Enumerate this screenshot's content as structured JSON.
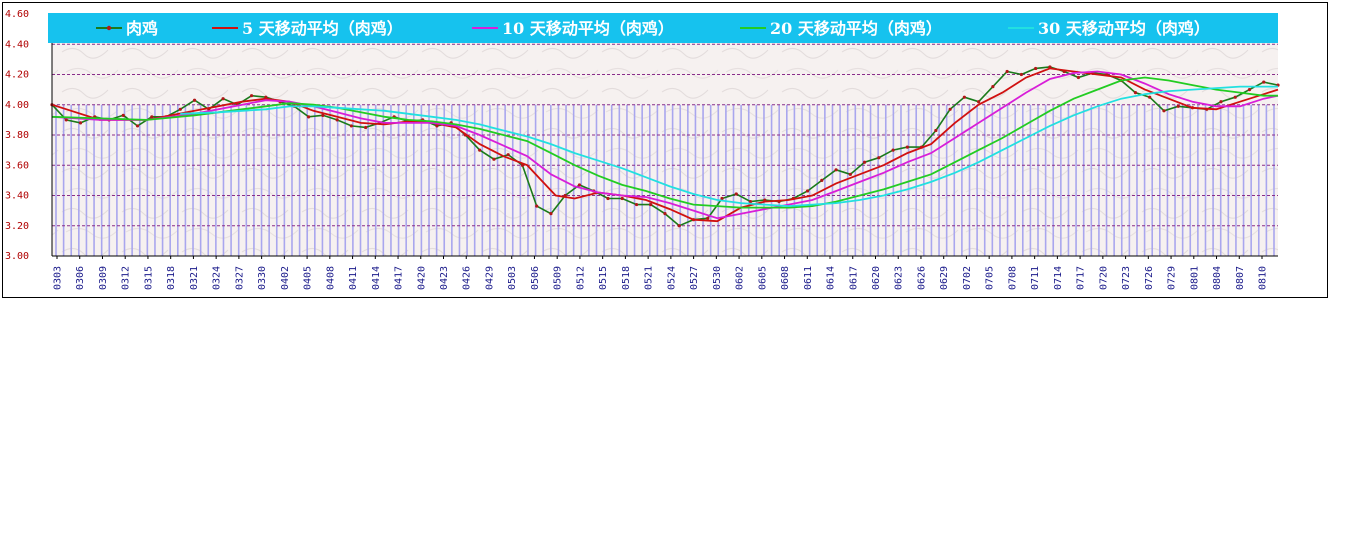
{
  "chart_data": {
    "type": "line",
    "title": "",
    "xlabel": "",
    "ylabel": "",
    "ylim": [
      3.0,
      4.6
    ],
    "y_ticks": [
      "3.00",
      "3.20",
      "3.40",
      "3.60",
      "3.80",
      "4.00",
      "4.20",
      "4.40",
      "4.60"
    ],
    "grid": true,
    "legend_position": "top",
    "x_tick_labels": [
      "0303",
      "0306",
      "0309",
      "0312",
      "0315",
      "0318",
      "0321",
      "0324",
      "0327",
      "0330",
      "0402",
      "0405",
      "0408",
      "0411",
      "0414",
      "0417",
      "0420",
      "0423",
      "0426",
      "0429",
      "0503",
      "0506",
      "0509",
      "0512",
      "0515",
      "0518",
      "0521",
      "0524",
      "0527",
      "0530",
      "0602",
      "0605",
      "0608",
      "0611",
      "0614",
      "0617",
      "0620",
      "0623",
      "0626",
      "0629",
      "0702",
      "0705",
      "0708",
      "0711",
      "0714",
      "0717",
      "0720",
      "0723",
      "0726",
      "0729",
      "0801",
      "0804",
      "0807",
      "0810"
    ],
    "n_days": 161,
    "series": [
      {
        "name": "肉鸡",
        "color": "#1a7a1a",
        "marker": true,
        "points": [
          [
            0,
            4.0
          ],
          [
            3,
            3.9
          ],
          [
            6,
            3.88
          ],
          [
            9,
            3.92
          ],
          [
            12,
            3.9
          ],
          [
            15,
            3.93
          ],
          [
            18,
            3.86
          ],
          [
            21,
            3.92
          ],
          [
            24,
            3.92
          ],
          [
            27,
            3.97
          ],
          [
            30,
            4.03
          ],
          [
            33,
            3.97
          ],
          [
            36,
            4.04
          ],
          [
            39,
            4.0
          ],
          [
            42,
            4.06
          ],
          [
            45,
            4.05
          ],
          [
            48,
            4.02
          ],
          [
            51,
            3.99
          ],
          [
            54,
            3.92
          ],
          [
            57,
            3.93
          ],
          [
            60,
            3.9
          ],
          [
            63,
            3.86
          ],
          [
            66,
            3.85
          ],
          [
            69,
            3.88
          ],
          [
            72,
            3.92
          ],
          [
            75,
            3.89
          ],
          [
            78,
            3.9
          ],
          [
            81,
            3.86
          ],
          [
            84,
            3.88
          ],
          [
            87,
            3.8
          ],
          [
            90,
            3.7
          ],
          [
            93,
            3.64
          ],
          [
            96,
            3.67
          ],
          [
            99,
            3.6
          ],
          [
            102,
            3.33
          ],
          [
            105,
            3.28
          ],
          [
            108,
            3.4
          ],
          [
            111,
            3.47
          ],
          [
            114,
            3.43
          ],
          [
            117,
            3.38
          ],
          [
            120,
            3.38
          ],
          [
            123,
            3.34
          ],
          [
            126,
            3.34
          ],
          [
            129,
            3.28
          ],
          [
            132,
            3.2
          ],
          [
            135,
            3.24
          ],
          [
            138,
            3.25
          ],
          [
            141,
            3.38
          ],
          [
            144,
            3.41
          ],
          [
            147,
            3.36
          ],
          [
            150,
            3.37
          ],
          [
            153,
            3.36
          ],
          [
            156,
            3.38
          ],
          [
            159,
            3.43
          ],
          [
            162,
            3.5
          ],
          [
            165,
            3.57
          ],
          [
            168,
            3.54
          ],
          [
            171,
            3.62
          ],
          [
            174,
            3.65
          ],
          [
            177,
            3.7
          ],
          [
            180,
            3.72
          ],
          [
            183,
            3.72
          ],
          [
            186,
            3.83
          ],
          [
            189,
            3.97
          ],
          [
            192,
            4.05
          ],
          [
            195,
            4.02
          ],
          [
            198,
            4.12
          ],
          [
            201,
            4.22
          ],
          [
            204,
            4.2
          ],
          [
            207,
            4.24
          ],
          [
            210,
            4.25
          ],
          [
            213,
            4.22
          ],
          [
            216,
            4.18
          ],
          [
            219,
            4.21
          ],
          [
            222,
            4.2
          ],
          [
            225,
            4.16
          ],
          [
            228,
            4.08
          ],
          [
            231,
            4.05
          ],
          [
            234,
            3.96
          ],
          [
            237,
            3.99
          ],
          [
            240,
            3.98
          ],
          [
            243,
            3.97
          ],
          [
            246,
            4.02
          ],
          [
            249,
            4.05
          ],
          [
            252,
            4.1
          ],
          [
            255,
            4.15
          ],
          [
            258,
            4.13
          ]
        ]
      },
      {
        "name": "5 天移动平均（肉鸡）",
        "color": "#d01010",
        "marker": false,
        "points": [
          [
            0,
            4.0
          ],
          [
            10,
            3.9
          ],
          [
            20,
            3.9
          ],
          [
            30,
            3.96
          ],
          [
            40,
            4.02
          ],
          [
            45,
            4.04
          ],
          [
            50,
            4.02
          ],
          [
            55,
            3.96
          ],
          [
            60,
            3.92
          ],
          [
            65,
            3.88
          ],
          [
            70,
            3.87
          ],
          [
            75,
            3.89
          ],
          [
            80,
            3.88
          ],
          [
            85,
            3.85
          ],
          [
            90,
            3.74
          ],
          [
            95,
            3.66
          ],
          [
            100,
            3.6
          ],
          [
            103,
            3.5
          ],
          [
            106,
            3.4
          ],
          [
            110,
            3.38
          ],
          [
            115,
            3.42
          ],
          [
            120,
            3.4
          ],
          [
            125,
            3.37
          ],
          [
            130,
            3.31
          ],
          [
            135,
            3.24
          ],
          [
            140,
            3.23
          ],
          [
            145,
            3.32
          ],
          [
            150,
            3.36
          ],
          [
            155,
            3.37
          ],
          [
            160,
            3.4
          ],
          [
            165,
            3.48
          ],
          [
            170,
            3.54
          ],
          [
            175,
            3.6
          ],
          [
            180,
            3.68
          ],
          [
            185,
            3.74
          ],
          [
            190,
            3.88
          ],
          [
            195,
            4.0
          ],
          [
            200,
            4.08
          ],
          [
            205,
            4.18
          ],
          [
            210,
            4.24
          ],
          [
            215,
            4.22
          ],
          [
            220,
            4.2
          ],
          [
            225,
            4.18
          ],
          [
            230,
            4.1
          ],
          [
            235,
            4.04
          ],
          [
            240,
            3.98
          ],
          [
            245,
            3.97
          ],
          [
            250,
            4.02
          ],
          [
            255,
            4.07
          ],
          [
            258,
            4.1
          ]
        ]
      },
      {
        "name": "10 天移动平均（肉鸡）",
        "color": "#d81ed8",
        "marker": false,
        "points": [
          [
            0,
            3.92
          ],
          [
            10,
            3.9
          ],
          [
            20,
            3.9
          ],
          [
            30,
            3.94
          ],
          [
            40,
            4.0
          ],
          [
            45,
            4.03
          ],
          [
            50,
            4.02
          ],
          [
            55,
            3.99
          ],
          [
            60,
            3.95
          ],
          [
            65,
            3.91
          ],
          [
            70,
            3.88
          ],
          [
            75,
            3.88
          ],
          [
            80,
            3.88
          ],
          [
            85,
            3.86
          ],
          [
            90,
            3.8
          ],
          [
            95,
            3.73
          ],
          [
            100,
            3.66
          ],
          [
            105,
            3.54
          ],
          [
            110,
            3.46
          ],
          [
            115,
            3.42
          ],
          [
            120,
            3.4
          ],
          [
            125,
            3.39
          ],
          [
            130,
            3.35
          ],
          [
            135,
            3.3
          ],
          [
            140,
            3.25
          ],
          [
            145,
            3.28
          ],
          [
            150,
            3.31
          ],
          [
            155,
            3.34
          ],
          [
            160,
            3.37
          ],
          [
            165,
            3.43
          ],
          [
            170,
            3.49
          ],
          [
            175,
            3.55
          ],
          [
            180,
            3.62
          ],
          [
            185,
            3.68
          ],
          [
            190,
            3.78
          ],
          [
            195,
            3.88
          ],
          [
            200,
            3.98
          ],
          [
            205,
            4.08
          ],
          [
            210,
            4.17
          ],
          [
            215,
            4.21
          ],
          [
            220,
            4.22
          ],
          [
            225,
            4.2
          ],
          [
            230,
            4.14
          ],
          [
            235,
            4.07
          ],
          [
            240,
            4.02
          ],
          [
            245,
            3.99
          ],
          [
            250,
            3.99
          ],
          [
            255,
            4.04
          ],
          [
            258,
            4.06
          ]
        ]
      },
      {
        "name": "20 天移动平均（肉鸡）",
        "color": "#22cc22",
        "marker": false,
        "points": [
          [
            0,
            3.92
          ],
          [
            10,
            3.91
          ],
          [
            20,
            3.9
          ],
          [
            30,
            3.93
          ],
          [
            40,
            3.97
          ],
          [
            45,
            3.99
          ],
          [
            50,
            4.01
          ],
          [
            55,
            4.0
          ],
          [
            60,
            3.98
          ],
          [
            65,
            3.95
          ],
          [
            70,
            3.92
          ],
          [
            75,
            3.9
          ],
          [
            80,
            3.89
          ],
          [
            85,
            3.87
          ],
          [
            90,
            3.84
          ],
          [
            95,
            3.8
          ],
          [
            100,
            3.76
          ],
          [
            105,
            3.68
          ],
          [
            110,
            3.6
          ],
          [
            115,
            3.53
          ],
          [
            120,
            3.47
          ],
          [
            125,
            3.43
          ],
          [
            130,
            3.38
          ],
          [
            135,
            3.34
          ],
          [
            140,
            3.33
          ],
          [
            145,
            3.32
          ],
          [
            150,
            3.32
          ],
          [
            155,
            3.32
          ],
          [
            160,
            3.33
          ],
          [
            165,
            3.36
          ],
          [
            170,
            3.4
          ],
          [
            175,
            3.44
          ],
          [
            180,
            3.49
          ],
          [
            185,
            3.54
          ],
          [
            190,
            3.62
          ],
          [
            195,
            3.7
          ],
          [
            200,
            3.78
          ],
          [
            205,
            3.87
          ],
          [
            210,
            3.96
          ],
          [
            215,
            4.04
          ],
          [
            220,
            4.1
          ],
          [
            225,
            4.16
          ],
          [
            230,
            4.18
          ],
          [
            235,
            4.16
          ],
          [
            240,
            4.13
          ],
          [
            245,
            4.1
          ],
          [
            250,
            4.08
          ],
          [
            255,
            4.06
          ],
          [
            258,
            4.06
          ]
        ]
      },
      {
        "name": "30 天移动平均（肉鸡）",
        "color": "#22e0e0",
        "marker": false,
        "points": [
          [
            27,
            3.94
          ],
          [
            35,
            3.95
          ],
          [
            40,
            3.96
          ],
          [
            45,
            3.97
          ],
          [
            50,
            3.99
          ],
          [
            55,
            3.99
          ],
          [
            60,
            3.98
          ],
          [
            65,
            3.97
          ],
          [
            70,
            3.96
          ],
          [
            75,
            3.94
          ],
          [
            80,
            3.92
          ],
          [
            85,
            3.9
          ],
          [
            90,
            3.87
          ],
          [
            95,
            3.83
          ],
          [
            100,
            3.79
          ],
          [
            105,
            3.74
          ],
          [
            110,
            3.68
          ],
          [
            115,
            3.63
          ],
          [
            120,
            3.58
          ],
          [
            125,
            3.52
          ],
          [
            130,
            3.46
          ],
          [
            135,
            3.41
          ],
          [
            140,
            3.37
          ],
          [
            145,
            3.35
          ],
          [
            150,
            3.34
          ],
          [
            155,
            3.33
          ],
          [
            160,
            3.34
          ],
          [
            165,
            3.35
          ],
          [
            170,
            3.37
          ],
          [
            175,
            3.4
          ],
          [
            180,
            3.44
          ],
          [
            185,
            3.49
          ],
          [
            190,
            3.55
          ],
          [
            195,
            3.62
          ],
          [
            200,
            3.7
          ],
          [
            205,
            3.78
          ],
          [
            210,
            3.86
          ],
          [
            215,
            3.93
          ],
          [
            220,
            3.99
          ],
          [
            225,
            4.04
          ],
          [
            230,
            4.07
          ],
          [
            235,
            4.09
          ],
          [
            240,
            4.1
          ],
          [
            245,
            4.11
          ],
          [
            250,
            4.12
          ],
          [
            255,
            4.12
          ],
          [
            258,
            4.12
          ]
        ]
      }
    ]
  }
}
